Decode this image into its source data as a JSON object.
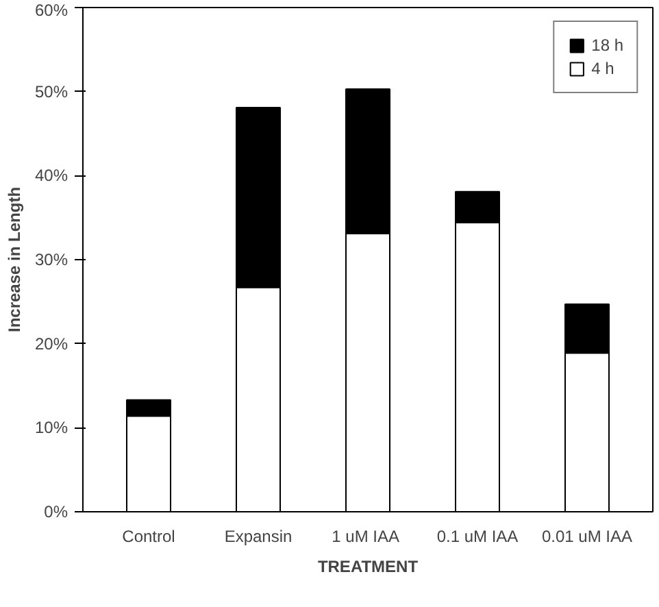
{
  "chart_data": {
    "type": "bar",
    "stacked": true,
    "xlabel": "TREATMENT",
    "ylabel": "Increase in Length",
    "categories": [
      "Control",
      "Expansin",
      "1 uM  IAA",
      "0.1 uM IAA",
      "0.01 uM IAA"
    ],
    "series": [
      {
        "name": "4 h",
        "color": "#ffffff",
        "values": [
          11.4,
          26.7,
          33.1,
          34.4,
          18.9
        ]
      },
      {
        "name": "18 h",
        "color": "#000000",
        "values": [
          1.9,
          21.4,
          17.2,
          3.7,
          5.8
        ]
      }
    ],
    "ylim": [
      0,
      60
    ],
    "yticks": [
      {
        "value": 0,
        "label": "0%"
      },
      {
        "value": 10,
        "label": "10%"
      },
      {
        "value": 20,
        "label": "20%"
      },
      {
        "value": 30,
        "label": "30%"
      },
      {
        "value": 40,
        "label": "40%"
      },
      {
        "value": 50,
        "label": "50%"
      },
      {
        "value": 60,
        "label": "60%"
      }
    ],
    "legend": "top right",
    "grid": false
  }
}
